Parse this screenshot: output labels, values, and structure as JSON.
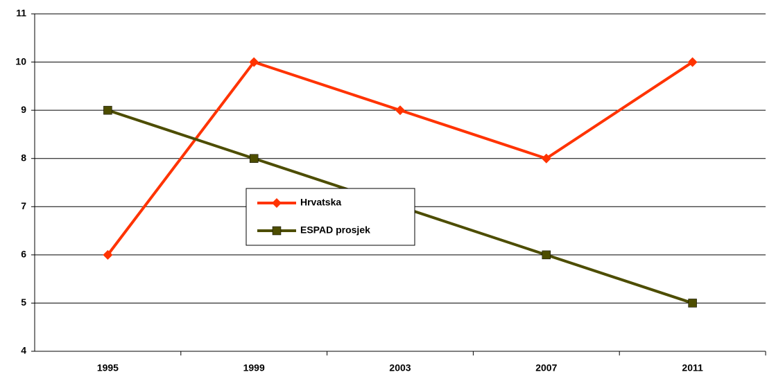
{
  "chart_data": {
    "type": "line",
    "categories": [
      "1995",
      "1999",
      "2003",
      "2007",
      "2011"
    ],
    "series": [
      {
        "name": "Hrvatska",
        "color": "#ff3300",
        "marker": "diamond",
        "values": [
          6,
          10,
          9,
          8,
          10
        ]
      },
      {
        "name": "ESPAD prosjek",
        "color": "#4d4d00",
        "marker": "square",
        "values": [
          9,
          8,
          7,
          6,
          5
        ]
      }
    ],
    "ylim": [
      4,
      11
    ],
    "yticks": [
      4,
      5,
      6,
      7,
      8,
      9,
      10,
      11
    ],
    "grid": true,
    "legend": "center"
  }
}
